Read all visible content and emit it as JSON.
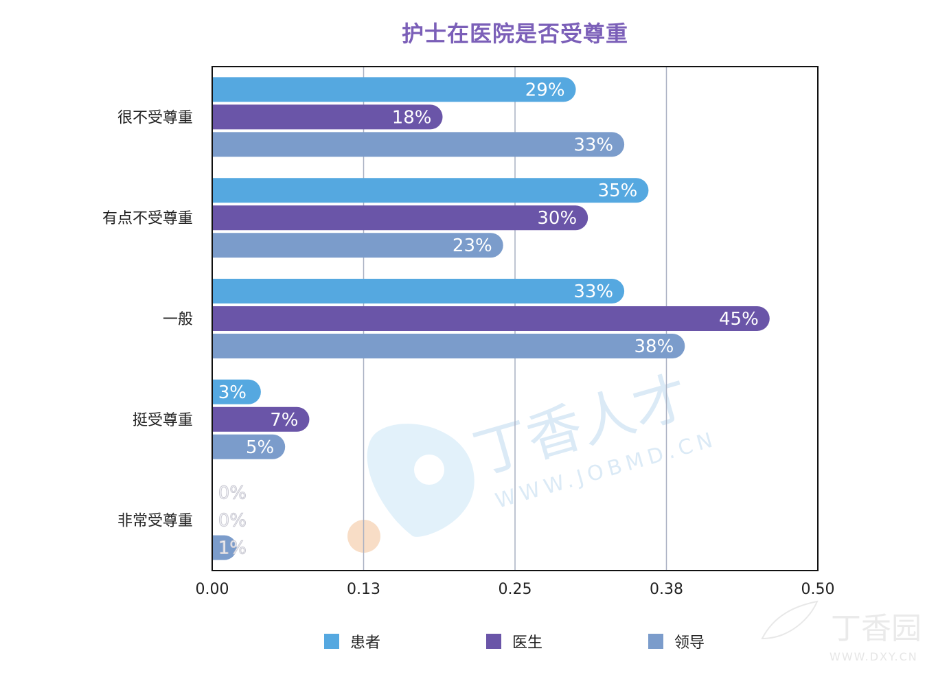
{
  "chart_data": {
    "type": "bar",
    "orientation": "horizontal",
    "title": "护士在医院是否受尊重",
    "categories": [
      "很不受尊重",
      "有点不受尊重",
      "一般",
      "挺受尊重",
      "非常受尊重"
    ],
    "series": [
      {
        "name": "患者",
        "color": "#55a8e0",
        "values": [
          0.29,
          0.35,
          0.33,
          0.03,
          0.0
        ],
        "labels": [
          "29%",
          "35%",
          "33%",
          "3%",
          "0%"
        ]
      },
      {
        "name": "医生",
        "color": "#6a55a8",
        "values": [
          0.18,
          0.3,
          0.45,
          0.07,
          0.0
        ],
        "labels": [
          "18%",
          "30%",
          "45%",
          "7%",
          "0%"
        ]
      },
      {
        "name": "领导",
        "color": "#7b9ccb",
        "values": [
          0.33,
          0.23,
          0.38,
          0.05,
          0.01
        ],
        "labels": [
          "33%",
          "23%",
          "38%",
          "5%",
          "1%"
        ]
      }
    ],
    "xlim": [
      0,
      0.5
    ],
    "xticks": [
      0,
      0.125,
      0.25,
      0.375,
      0.5
    ],
    "xtick_labels": [
      "0.00",
      "0.13",
      "0.25",
      "0.38",
      "0.50"
    ],
    "grid": true,
    "legend_position": "bottom"
  },
  "watermark": {
    "brand": "丁香人才",
    "url": "WWW.JOBMD.CN",
    "corner_brand": "丁香园",
    "corner_url": "WWW.DXY.CN"
  }
}
